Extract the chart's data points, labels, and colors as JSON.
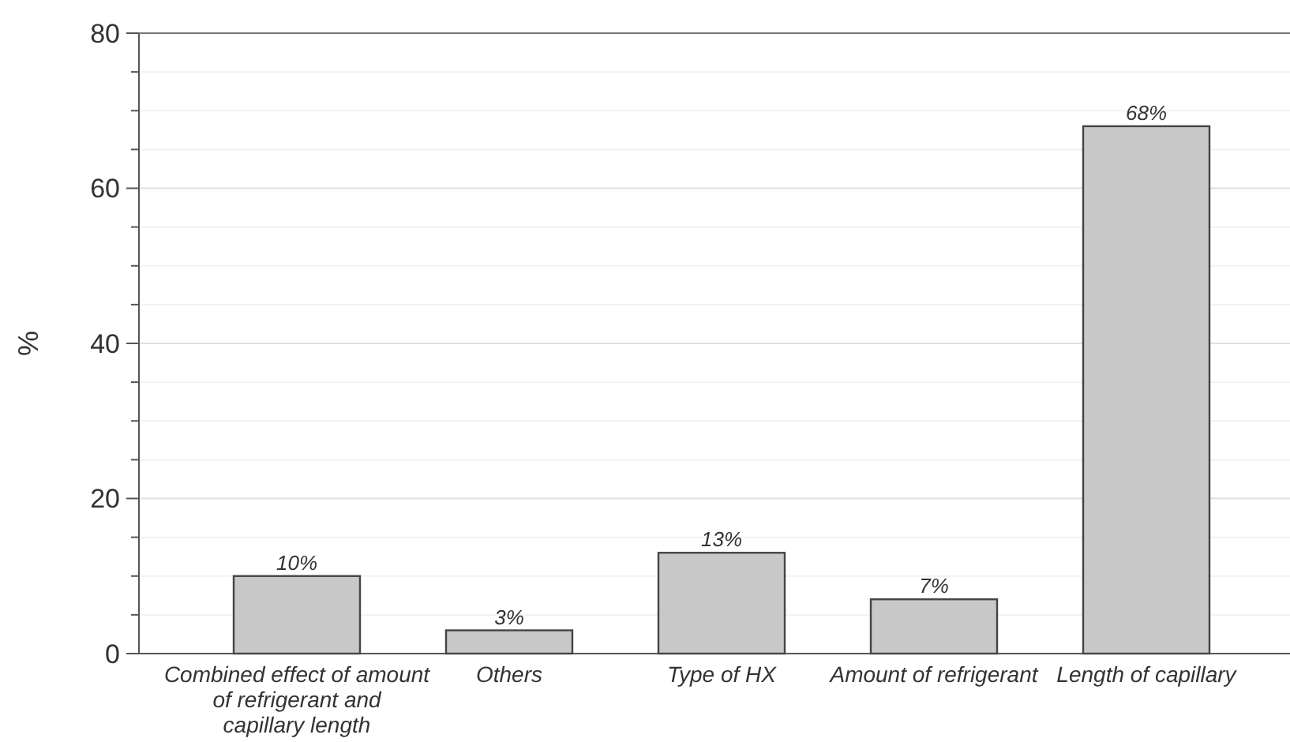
{
  "chart_data": {
    "type": "bar",
    "ylabel": "%",
    "categories": [
      "Combined effect of amount of refrigerant and capillary length",
      "Others",
      "Type of HX",
      "Amount of refrigerant",
      "Length of capillary"
    ],
    "values": [
      10,
      3,
      13,
      7,
      68
    ],
    "value_labels": [
      "10%",
      "3%",
      "13%",
      "7%",
      "68%"
    ],
    "color": "#c8c8c8",
    "ylim": [
      0,
      80
    ],
    "yticks": [
      0,
      {
        "value": 5,
        "label": null
      },
      {
        "value": 10,
        "label": null
      },
      {
        "value": 15,
        "label": null
      },
      20,
      {
        "value": 25,
        "label": null
      },
      {
        "value": 30,
        "label": null
      },
      {
        "value": 35,
        "label": null
      },
      40,
      {
        "value": 45,
        "label": null
      },
      {
        "value": 50,
        "label": null
      },
      {
        "value": 55,
        "label": null
      },
      60,
      {
        "value": 65,
        "label": null
      },
      {
        "value": 70,
        "label": null
      },
      {
        "value": 75,
        "label": null
      },
      80
    ],
    "grid": true
  }
}
